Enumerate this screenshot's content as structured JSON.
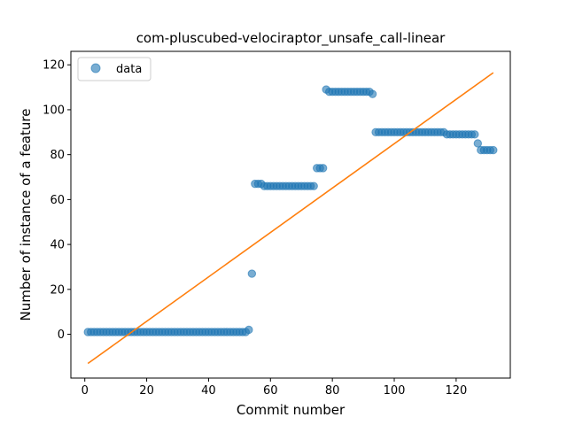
{
  "chart_data": {
    "type": "scatter",
    "title": "com-pluscubed-velociraptor_unsafe_call-linear",
    "xlabel": "Commit number",
    "ylabel": "Number of instance of a feature",
    "xlim": [
      -4.5,
      137.5
    ],
    "ylim": [
      -19.5,
      126
    ],
    "xticks": [
      0,
      20,
      40,
      60,
      80,
      100,
      120
    ],
    "yticks": [
      0,
      20,
      40,
      60,
      80,
      100,
      120
    ],
    "grid": false,
    "legend_position": "top-left",
    "series": [
      {
        "name": "data",
        "kind": "scatter",
        "color": "#1f77b4",
        "segments": [
          {
            "x_from": 1,
            "x_to": 52,
            "y": 1
          },
          {
            "x_from": 53,
            "x_to": 53,
            "y": 2
          },
          {
            "x_from": 54,
            "x_to": 54,
            "y": 27
          },
          {
            "x_from": 55,
            "x_to": 57,
            "y": 67
          },
          {
            "x_from": 58,
            "x_to": 74,
            "y": 66
          },
          {
            "x_from": 75,
            "x_to": 77,
            "y": 74
          },
          {
            "x_from": 78,
            "x_to": 78,
            "y": 109
          },
          {
            "x_from": 79,
            "x_to": 92,
            "y": 108
          },
          {
            "x_from": 93,
            "x_to": 93,
            "y": 107
          },
          {
            "x_from": 94,
            "x_to": 116,
            "y": 90
          },
          {
            "x_from": 117,
            "x_to": 126,
            "y": 89
          },
          {
            "x_from": 127,
            "x_to": 127,
            "y": 85
          },
          {
            "x_from": 128,
            "x_to": 132,
            "y": 82
          }
        ]
      },
      {
        "name": "",
        "kind": "line",
        "color": "#ff7f0e",
        "x": [
          1,
          132
        ],
        "y": [
          -13,
          116.5
        ]
      }
    ]
  }
}
